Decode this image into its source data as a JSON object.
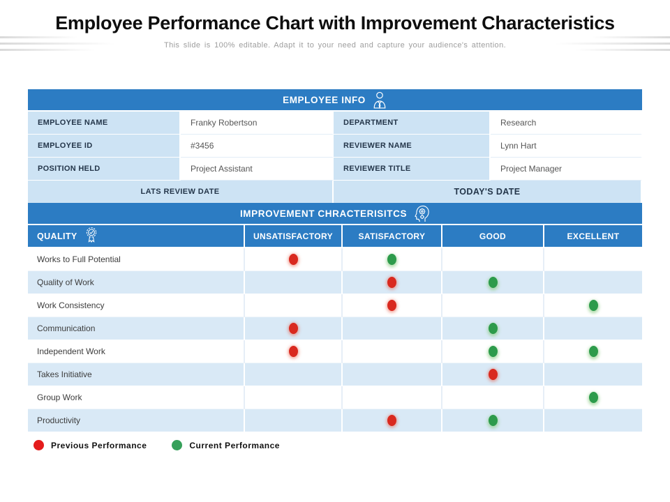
{
  "title": "Employee Performance Chart with Improvement Characteristics",
  "subtitle": "This slide is 100% editable. Adapt it to your need and capture your audience's attention.",
  "colors": {
    "header_blue": "#2c7cc3",
    "label_blue": "#cde3f4",
    "row_alt_blue": "#d9e9f6",
    "previous_red": "#d9291f",
    "current_green": "#2d9b4b"
  },
  "employee_info": {
    "header": "EMPLOYEE INFO",
    "icon": "businessman-icon",
    "fields": [
      {
        "label1": "EMPLOYEE NAME",
        "value1": "Franky Robertson",
        "label2": "DEPARTMENT",
        "value2": "Research"
      },
      {
        "label1": "EMPLOYEE ID",
        "value1": "#3456",
        "label2": "REVIEWER  NAME",
        "value2": "Lynn Hart"
      },
      {
        "label1": "POSITION HELD",
        "value1": "Project Assistant",
        "label2": "REVIEWER  TITLE",
        "value2": "Project Manager"
      }
    ],
    "footer_left": "LATS REVIEW DATE",
    "footer_right": "TODAY'S DATE"
  },
  "improvement": {
    "header": "IMPROVEMENT CHRACTERISITCS",
    "icon": "mind-gear-icon",
    "quality_icon": "award-ribbon-icon",
    "columns": [
      "QUALITY",
      "UNSATISFACTORY",
      "SATISFACTORY",
      "GOOD",
      "EXCELLENT"
    ],
    "rows": [
      {
        "label": "Works to Full Potential",
        "dots": [
          "red",
          "green",
          "",
          ""
        ]
      },
      {
        "label": "Quality of Work",
        "dots": [
          "",
          "red",
          "green",
          ""
        ]
      },
      {
        "label": "Work Consistency",
        "dots": [
          "",
          "red",
          "",
          "green"
        ]
      },
      {
        "label": "Communication",
        "dots": [
          "red",
          "",
          "green",
          ""
        ]
      },
      {
        "label": "Independent Work",
        "dots": [
          "red",
          "",
          "green",
          "green"
        ]
      },
      {
        "label": "Takes Initiative",
        "dots": [
          "",
          "",
          "red",
          ""
        ]
      },
      {
        "label": "Group Work",
        "dots": [
          "",
          "",
          "",
          "green"
        ]
      },
      {
        "label": "Productivity",
        "dots": [
          "",
          "red",
          "green",
          ""
        ]
      }
    ]
  },
  "legend": [
    {
      "color": "red",
      "label": "Previous Performance"
    },
    {
      "color": "green",
      "label": "Current Performance"
    }
  ],
  "chart_data": {
    "type": "table",
    "title": "Improvement Characteristics",
    "categories": [
      "Works to Full Potential",
      "Quality of Work",
      "Work Consistency",
      "Communication",
      "Independent Work",
      "Takes Initiative",
      "Group Work",
      "Productivity"
    ],
    "rating_scale": [
      "Unsatisfactory",
      "Satisfactory",
      "Good",
      "Excellent"
    ],
    "series": [
      {
        "name": "Previous Performance",
        "values": [
          "Unsatisfactory",
          "Satisfactory",
          "Satisfactory",
          "Unsatisfactory",
          "Unsatisfactory",
          "Good",
          null,
          "Satisfactory"
        ]
      },
      {
        "name": "Current Performance",
        "values": [
          "Satisfactory",
          "Good",
          "Excellent",
          "Good",
          [
            "Good",
            "Excellent"
          ],
          null,
          "Excellent",
          "Good"
        ]
      }
    ]
  }
}
